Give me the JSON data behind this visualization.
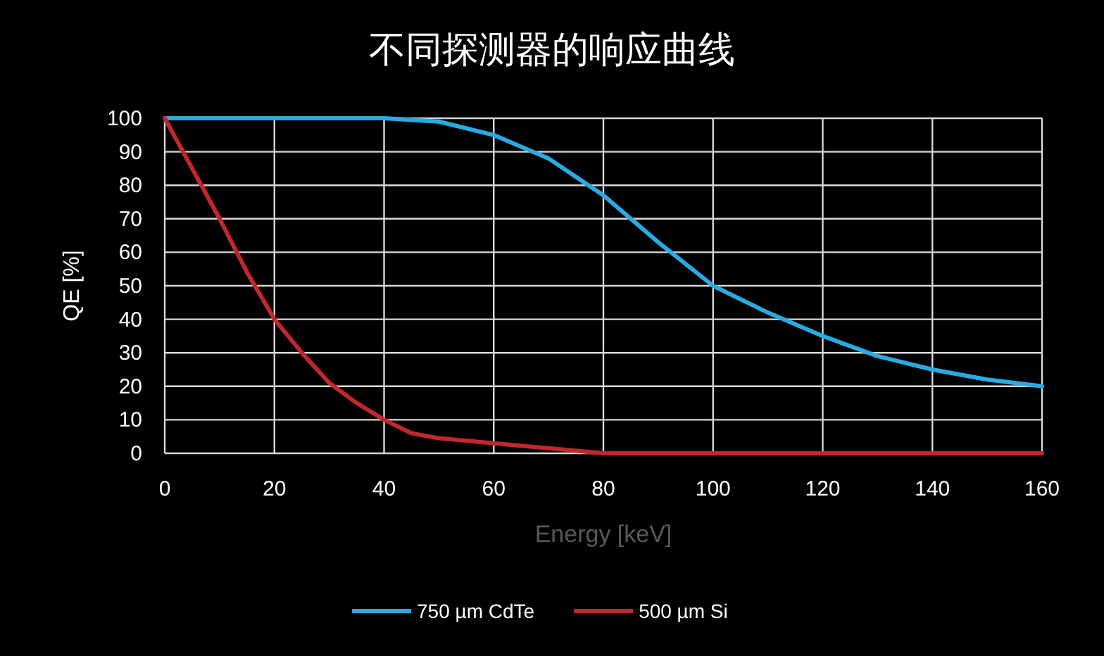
{
  "chart_data": {
    "type": "line",
    "title": "不同探测器的响应曲线",
    "xlabel": "Energy [keV]",
    "ylabel": "QE [%]",
    "xlim": [
      0,
      160
    ],
    "xticks": [
      0,
      20,
      40,
      60,
      80,
      100,
      120,
      140,
      160
    ],
    "ylim": [
      0,
      100
    ],
    "yticks": [
      0,
      10,
      20,
      30,
      40,
      50,
      60,
      70,
      80,
      90,
      100
    ],
    "grid": true,
    "legend": "bottom",
    "marker": "none",
    "line_style": "solid",
    "series": [
      {
        "name": "750 µm CdTe",
        "color": "#29abe2",
        "x": [
          0,
          20,
          40,
          50,
          60,
          70,
          80,
          90,
          100,
          110,
          120,
          130,
          140,
          150,
          160
        ],
        "values": [
          100,
          100,
          100,
          99,
          95,
          88,
          77,
          63,
          50,
          42,
          35,
          29,
          25,
          22,
          20
        ]
      },
      {
        "name": "500 µm Si",
        "color": "#c1272d",
        "x": [
          0,
          5,
          10,
          15,
          20,
          25,
          30,
          35,
          40,
          45,
          50,
          60,
          70,
          80,
          100,
          120,
          140,
          160
        ],
        "values": [
          100,
          85,
          70,
          54,
          40,
          30,
          21,
          15,
          10,
          6,
          4.5,
          3,
          1.5,
          0,
          0,
          0,
          0,
          0
        ]
      }
    ]
  }
}
